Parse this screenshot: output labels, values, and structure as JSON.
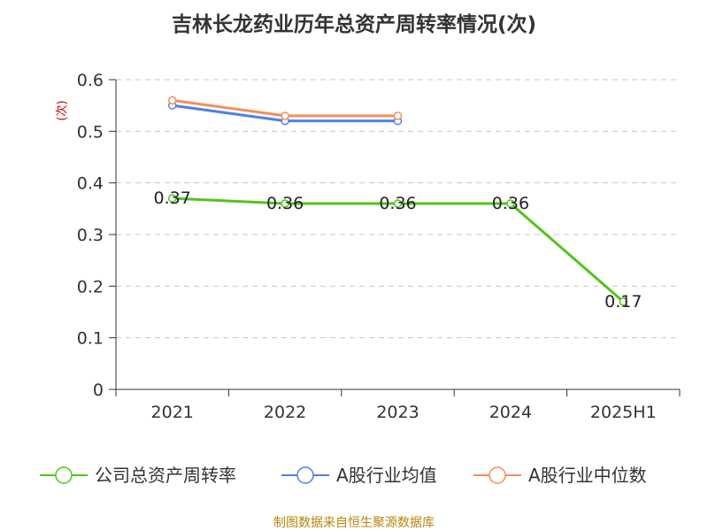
{
  "chart_data": {
    "type": "line",
    "title": "吉林长龙药业历年总资产周转率情况(次)",
    "ylabel": "(次)",
    "xlabel": "",
    "categories": [
      "2021",
      "2022",
      "2023",
      "2024",
      "2025H1"
    ],
    "ylim": [
      0,
      0.6
    ],
    "yticks": [
      "0",
      "0.1",
      "0.2",
      "0.3",
      "0.4",
      "0.5",
      "0.6"
    ],
    "grid": true,
    "legend_position": "bottom",
    "series": [
      {
        "name": "公司总资产周转率",
        "color": "#52c41a",
        "values": [
          0.37,
          0.36,
          0.36,
          0.36,
          0.17
        ],
        "labels": [
          "0.37",
          "0.36",
          "0.36",
          "0.36",
          "0.17"
        ]
      },
      {
        "name": "A股行业均值",
        "color": "#4f81e8",
        "values": [
          0.55,
          0.52,
          0.52,
          null,
          null
        ]
      },
      {
        "name": "A股行业中位数",
        "color": "#f58d5a",
        "values": [
          0.56,
          0.53,
          0.53,
          null,
          null
        ]
      }
    ],
    "source": "制图数据来自恒生聚源数据库"
  }
}
